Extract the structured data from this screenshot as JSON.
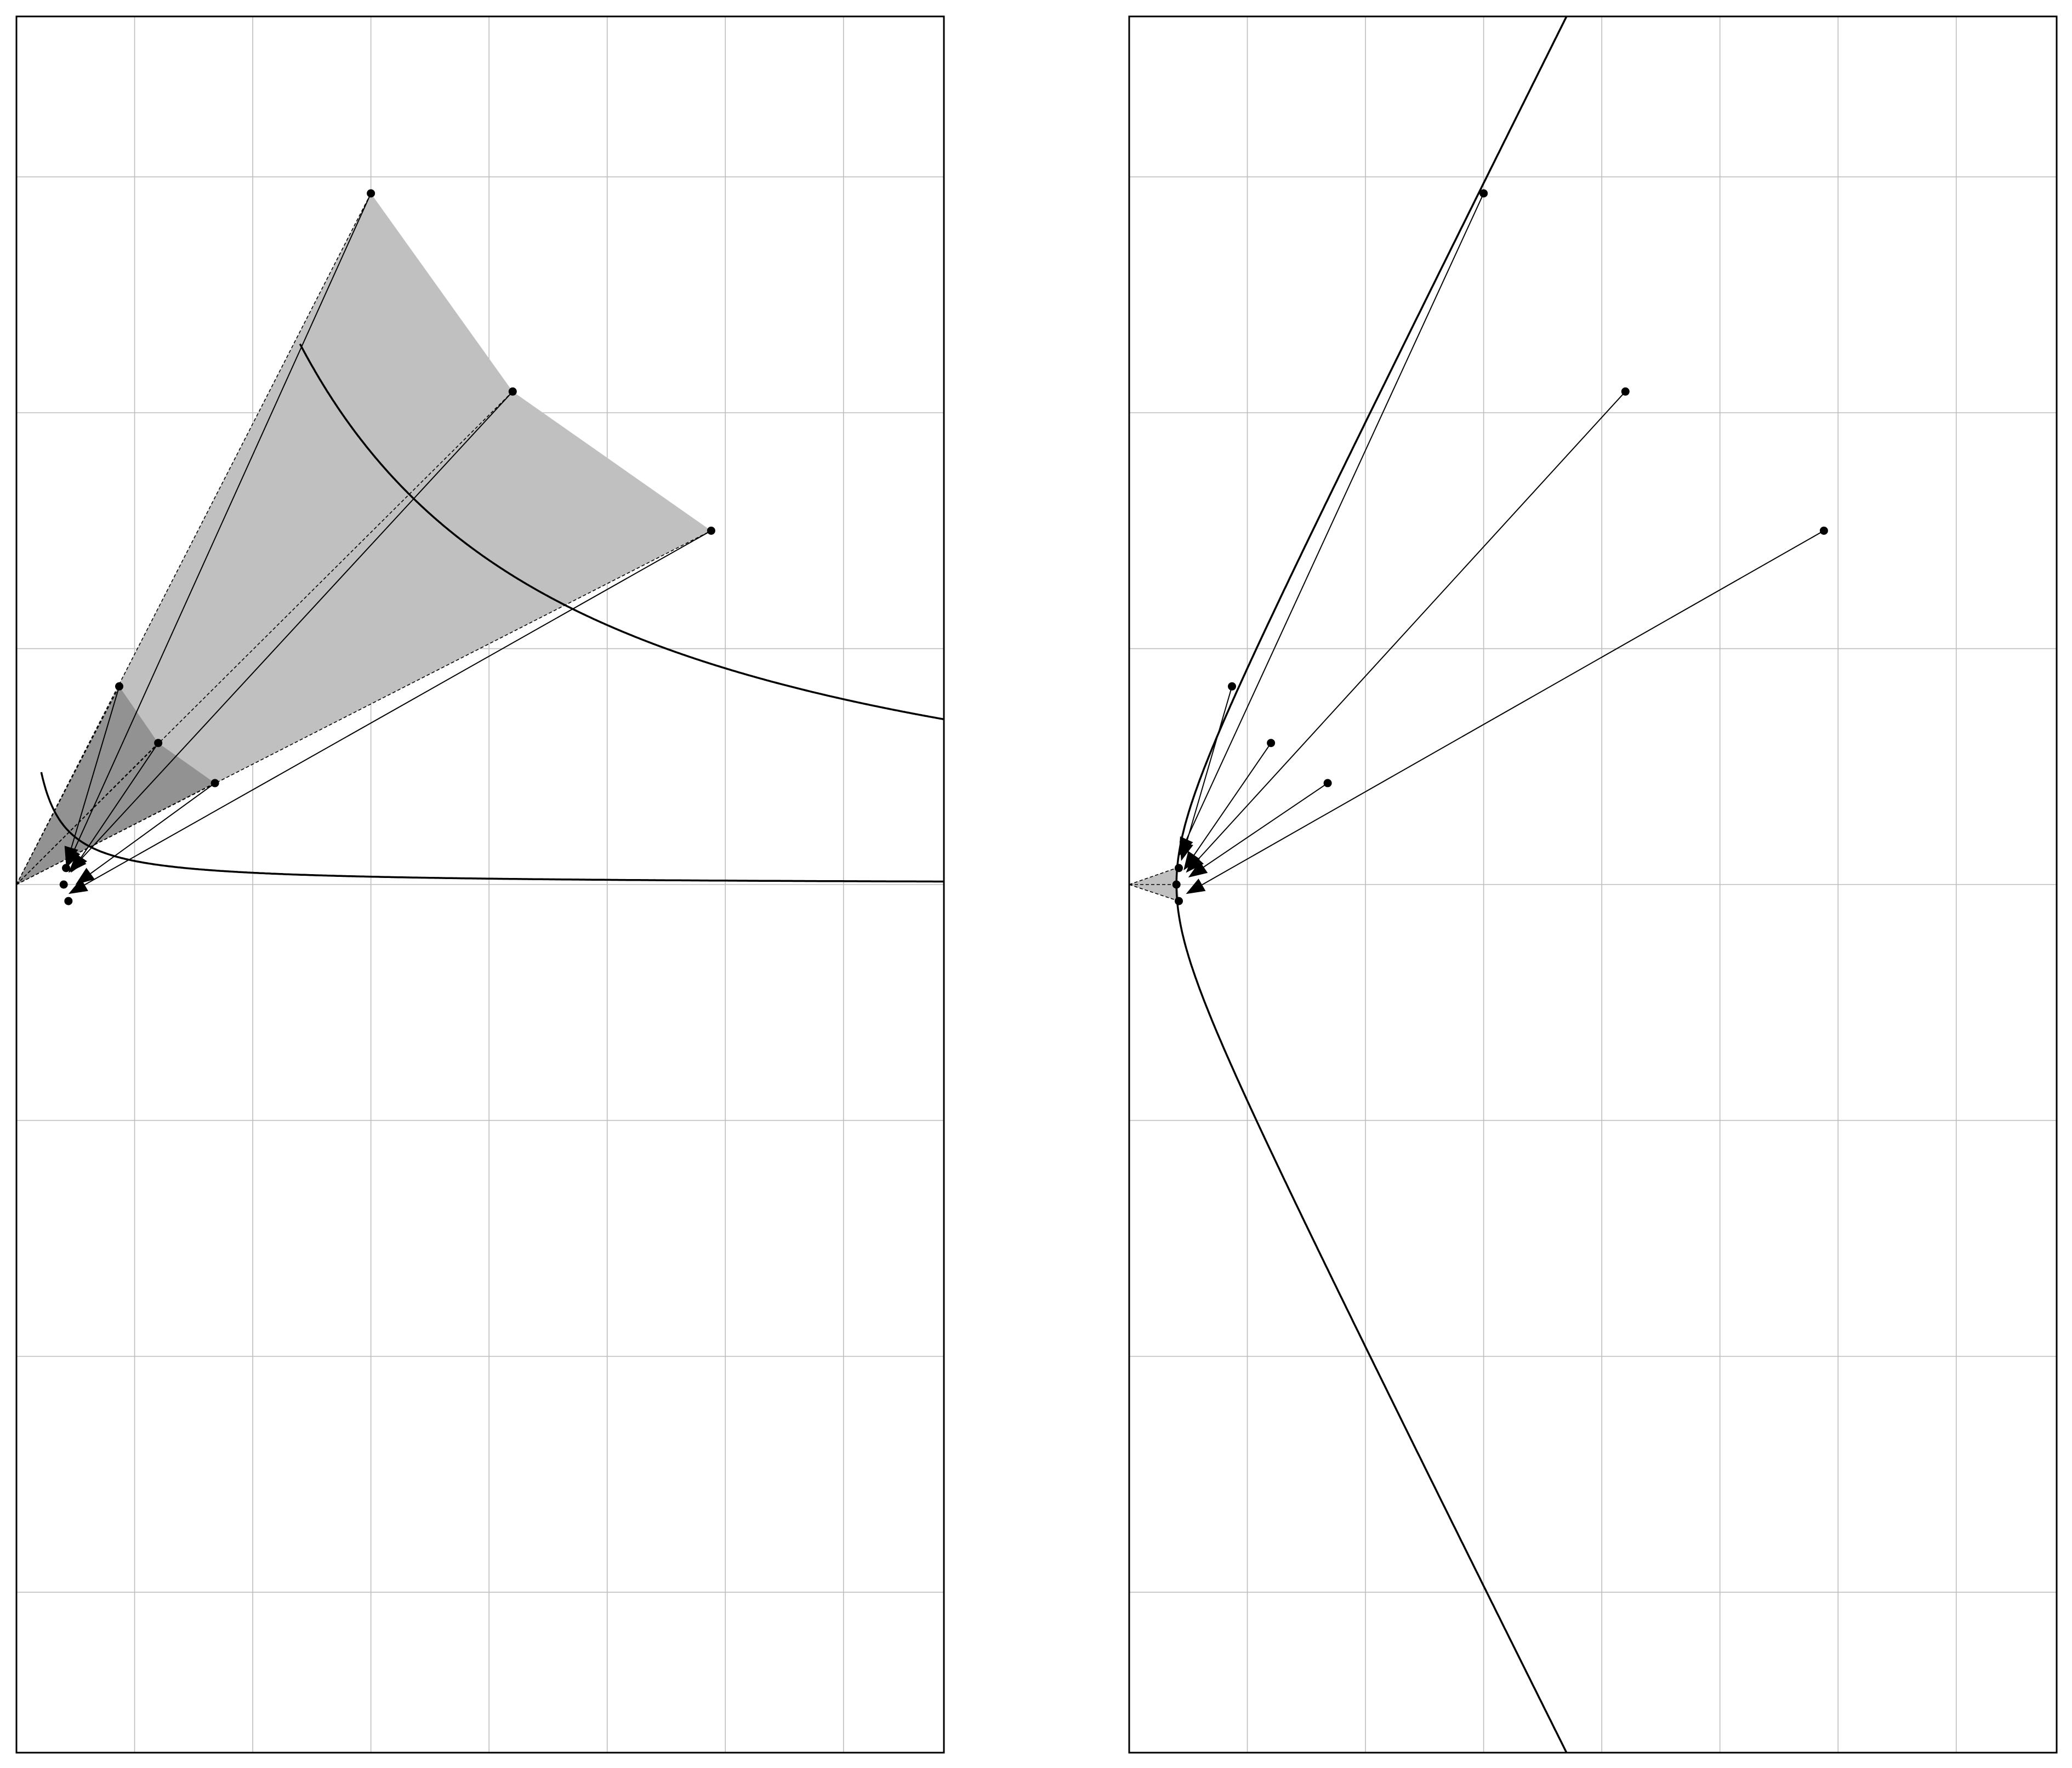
{
  "colors": {
    "background": "#ffffff",
    "frame": "#000000",
    "grid": "#bdbdbd",
    "curve": "#000000",
    "light_fill": "#c0c0c0",
    "dark_fill": "#929292"
  },
  "grid": {
    "x_ticks": [
      1,
      2,
      3,
      4,
      5,
      6,
      7
    ],
    "y_ticks": [
      -3,
      -2,
      -1,
      1,
      2,
      3
    ]
  },
  "panels": [
    {
      "id": "left",
      "xlim": [
        0,
        7.85
      ],
      "ylim": [
        -3.68,
        3.68
      ],
      "curves": [
        {
          "type": "hyperbola",
          "c": 0.1,
          "t_min": 0.21,
          "t_max": 7.85
        },
        {
          "type": "hyperbola",
          "c": 5.5,
          "t_min": 2.4,
          "t_max": 7.85
        }
      ],
      "polygons": [
        {
          "fill": "light_fill",
          "points": [
            [
              0,
              0
            ],
            [
              3,
              2.93
            ],
            [
              4.2,
              2.09
            ],
            [
              5.88,
              1.5
            ]
          ]
        },
        {
          "fill": "dark_fill",
          "points": [
            [
              0,
              0
            ],
            [
              0.87,
              0.84
            ],
            [
              1.2,
              0.6
            ],
            [
              1.68,
              0.43
            ]
          ]
        }
      ],
      "dashed_edges": [
        [
          [
            0,
            0
          ],
          [
            3,
            2.93
          ]
        ],
        [
          [
            0,
            0
          ],
          [
            4.2,
            2.09
          ]
        ],
        [
          [
            0,
            0
          ],
          [
            5.88,
            1.5
          ]
        ],
        [
          [
            0,
            0
          ],
          [
            0.87,
            0.84
          ]
        ],
        [
          [
            0,
            0
          ],
          [
            1.2,
            0.6
          ]
        ],
        [
          [
            0,
            0
          ],
          [
            1.68,
            0.43
          ]
        ]
      ],
      "points": [
        [
          3,
          2.93
        ],
        [
          4.2,
          2.09
        ],
        [
          5.88,
          1.5
        ],
        [
          0.87,
          0.84
        ],
        [
          1.2,
          0.6
        ],
        [
          1.68,
          0.43
        ],
        [
          0.42,
          0.07
        ],
        [
          0.4,
          0.0
        ],
        [
          0.44,
          -0.07
        ]
      ],
      "arrows": [
        {
          "from": [
            3,
            2.93
          ],
          "to": [
            0.42,
            0.07
          ]
        },
        {
          "from": [
            4.2,
            2.09
          ],
          "to": [
            0.44,
            0.05
          ]
        },
        {
          "from": [
            5.88,
            1.5
          ],
          "to": [
            0.44,
            -0.04
          ]
        },
        {
          "from": [
            0.87,
            0.84
          ],
          "to": [
            0.42,
            0.08
          ]
        },
        {
          "from": [
            1.2,
            0.6
          ],
          "to": [
            0.46,
            0.05
          ]
        },
        {
          "from": [
            1.68,
            0.43
          ],
          "to": [
            0.5,
            0.0
          ]
        }
      ]
    },
    {
      "id": "right",
      "xlim": [
        0,
        7.85
      ],
      "ylim": [
        -3.68,
        3.68
      ],
      "curves": [
        {
          "type": "hyperbola_right",
          "a": 0.4,
          "y_min": -3.68,
          "y_max": 3.68
        }
      ],
      "polygons": [
        {
          "fill": "light_fill",
          "points": [
            [
              0,
              0
            ],
            [
              0.4,
              0.07
            ],
            [
              0.42,
              -0.07
            ]
          ]
        }
      ],
      "dashed_edges": [
        [
          [
            0,
            0
          ],
          [
            0.4,
            0.07
          ]
        ],
        [
          [
            0,
            0
          ],
          [
            0.42,
            -0.07
          ]
        ],
        [
          [
            0,
            0
          ],
          [
            0.4,
            0.0
          ]
        ]
      ],
      "points": [
        [
          3,
          2.93
        ],
        [
          4.2,
          2.09
        ],
        [
          5.88,
          1.5
        ],
        [
          0.87,
          0.84
        ],
        [
          1.2,
          0.6
        ],
        [
          1.68,
          0.43
        ],
        [
          0.42,
          0.07
        ],
        [
          0.4,
          0.0
        ],
        [
          0.42,
          -0.07
        ]
      ],
      "arrows": [
        {
          "from": [
            3,
            2.93
          ],
          "to": [
            0.42,
            0.12
          ]
        },
        {
          "from": [
            4.2,
            2.09
          ],
          "to": [
            0.48,
            0.05
          ]
        },
        {
          "from": [
            5.88,
            1.5
          ],
          "to": [
            0.48,
            -0.04
          ]
        },
        {
          "from": [
            0.87,
            0.84
          ],
          "to": [
            0.44,
            0.1
          ]
        },
        {
          "from": [
            1.2,
            0.6
          ],
          "to": [
            0.46,
            0.06
          ]
        },
        {
          "from": [
            1.68,
            0.43
          ],
          "to": [
            0.5,
            0.03
          ]
        }
      ]
    }
  ]
}
